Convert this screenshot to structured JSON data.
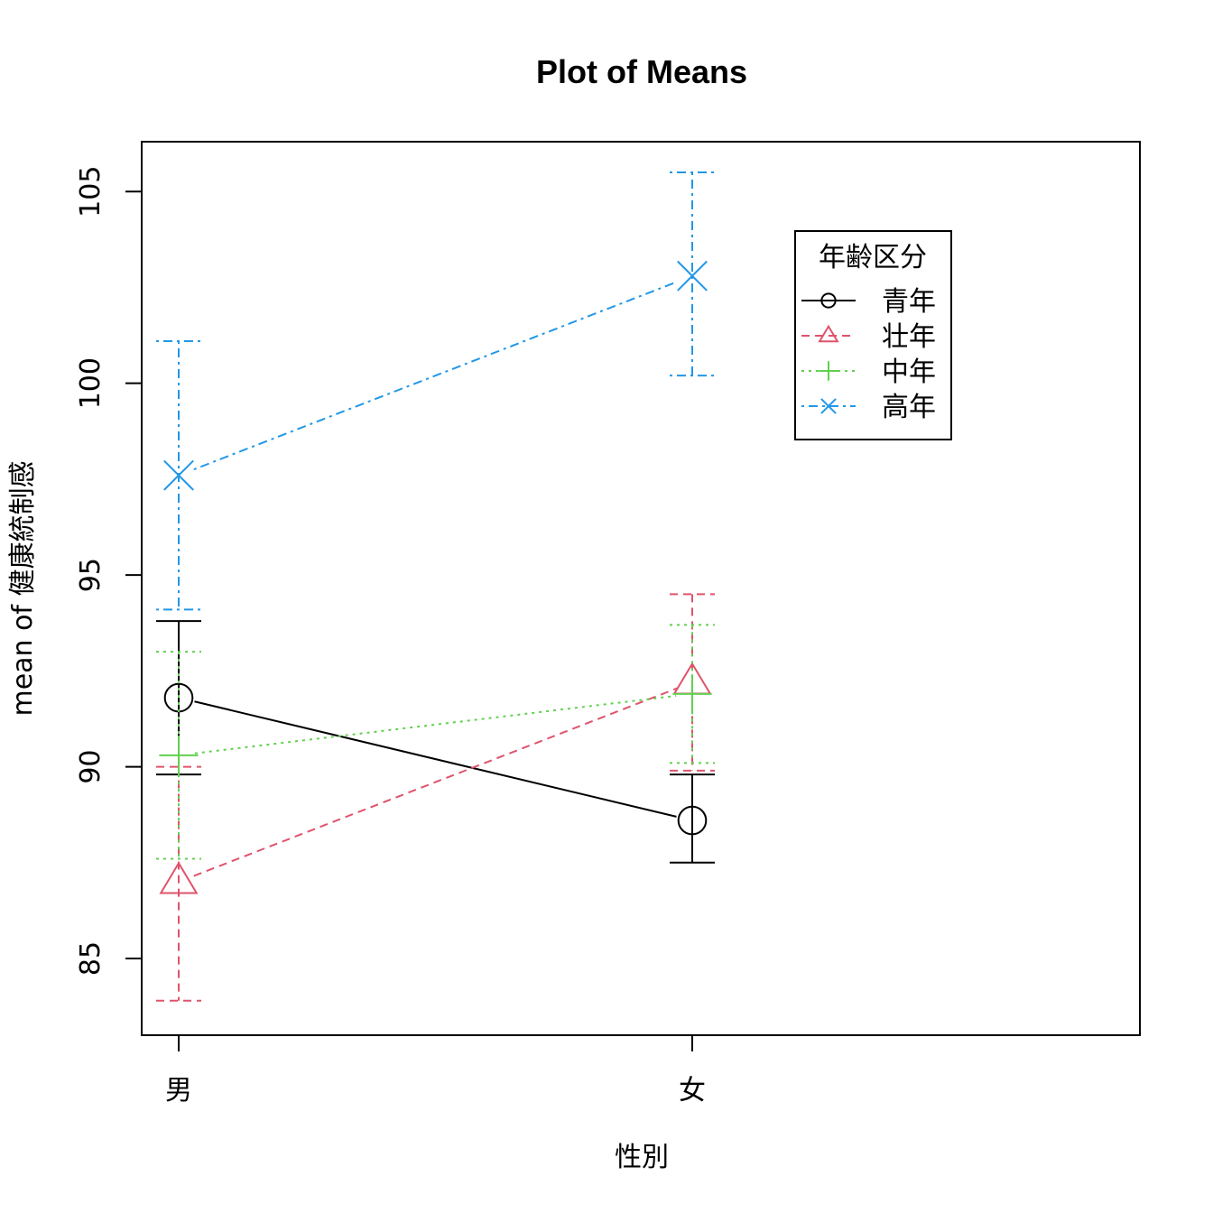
{
  "chart_data": {
    "type": "line",
    "title": "Plot of Means",
    "xlabel": "性別",
    "ylabel": "mean of 健康統制感",
    "categories": [
      "男",
      "女"
    ],
    "ylim": [
      83.0,
      106.3
    ],
    "yticks": [
      85,
      90,
      95,
      100,
      105
    ],
    "legend": {
      "title": "年齢区分",
      "position": "top-right"
    },
    "series": [
      {
        "name": "青年",
        "color": "#000000",
        "line_style": "solid",
        "marker": "circle",
        "values": [
          91.8,
          88.6
        ],
        "lower": [
          89.8,
          87.5
        ],
        "upper": [
          93.8,
          89.8
        ]
      },
      {
        "name": "壮年",
        "color": "#DF536B",
        "line_style": "dashed",
        "marker": "triangle",
        "values": [
          87.0,
          92.2
        ],
        "lower": [
          83.9,
          89.9
        ],
        "upper": [
          90.0,
          94.5
        ]
      },
      {
        "name": "中年",
        "color": "#61D04F",
        "line_style": "dotted",
        "marker": "plus",
        "values": [
          90.3,
          91.9
        ],
        "lower": [
          87.6,
          90.1
        ],
        "upper": [
          93.0,
          93.7
        ]
      },
      {
        "name": "高年",
        "color": "#2297E6",
        "line_style": "dotdash",
        "marker": "cross",
        "values": [
          97.6,
          102.8
        ],
        "lower": [
          94.1,
          100.2
        ],
        "upper": [
          101.1,
          105.5
        ]
      }
    ]
  }
}
